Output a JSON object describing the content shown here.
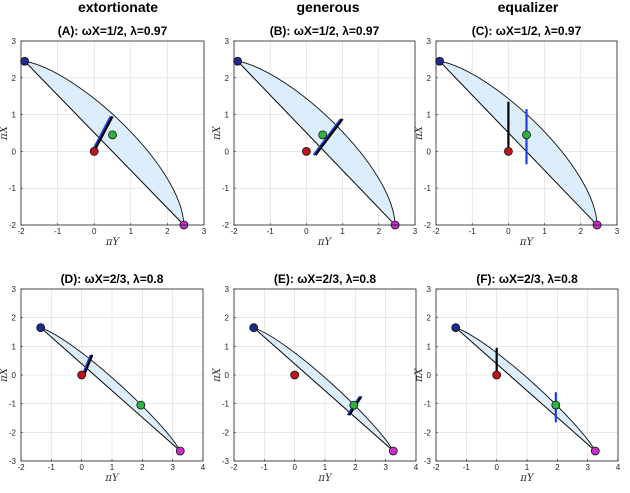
{
  "columns": [
    "extortionate",
    "generous",
    "equalizer"
  ],
  "chart_data": [
    {
      "type": "scatter",
      "panel": "A",
      "title": "(A): ωX=1/2, λ=0.97",
      "xlabel": "πY",
      "ylabel": "πX",
      "xlim": [
        -2,
        3
      ],
      "ylim": [
        -2,
        3
      ],
      "xticks": [
        "-2",
        "-1",
        "0",
        "1",
        "2",
        "3"
      ],
      "yticks": [
        "-2",
        "-1",
        "0",
        "1",
        "2",
        "3"
      ],
      "grid": true,
      "region_vertices": {
        "top_left": [
          -1.9,
          2.45
        ],
        "bottom_right": [
          2.45,
          -2
        ]
      },
      "points": [
        {
          "name": "blue",
          "x": -1.9,
          "y": 2.45
        },
        {
          "name": "red",
          "x": 0,
          "y": 0
        },
        {
          "name": "green",
          "x": 0.5,
          "y": 0.45
        },
        {
          "name": "magenta",
          "x": 2.45,
          "y": -2
        }
      ],
      "segments": [
        {
          "color": "blue",
          "x1": 0.0,
          "y1": 0.1,
          "x2": 0.45,
          "y2": 0.95
        },
        {
          "color": "black",
          "x1": 0.05,
          "y1": 0.1,
          "x2": 0.5,
          "y2": 0.95
        }
      ]
    },
    {
      "type": "scatter",
      "panel": "B",
      "title": "(B): ωX=1/2, λ=0.97",
      "xlabel": "πY",
      "ylabel": "πX",
      "xlim": [
        -2,
        3
      ],
      "ylim": [
        -2,
        3
      ],
      "xticks": [
        "-2",
        "-1",
        "0",
        "1",
        "2",
        "3"
      ],
      "yticks": [
        "-2",
        "-1",
        "0",
        "1",
        "2",
        "3"
      ],
      "grid": true,
      "region_vertices": {
        "top_left": [
          -1.9,
          2.45
        ],
        "bottom_right": [
          2.45,
          -2
        ]
      },
      "points": [
        {
          "name": "blue",
          "x": -1.9,
          "y": 2.45
        },
        {
          "name": "red",
          "x": 0,
          "y": 0
        },
        {
          "name": "green",
          "x": 0.45,
          "y": 0.45
        },
        {
          "name": "magenta",
          "x": 2.45,
          "y": -2
        }
      ],
      "segments": [
        {
          "color": "blue",
          "x1": 0.2,
          "y1": -0.1,
          "x2": 0.95,
          "y2": 0.88
        },
        {
          "color": "black",
          "x1": 0.25,
          "y1": -0.1,
          "x2": 1.0,
          "y2": 0.88
        }
      ]
    },
    {
      "type": "scatter",
      "panel": "C",
      "title": "(C): ωX=1/2, λ=0.97",
      "xlabel": "πY",
      "ylabel": "πX",
      "xlim": [
        -2,
        3
      ],
      "ylim": [
        -2,
        3
      ],
      "xticks": [
        "-2",
        "-1",
        "0",
        "1",
        "2",
        "3"
      ],
      "yticks": [
        "-2",
        "-1",
        "0",
        "1",
        "2",
        "3"
      ],
      "grid": true,
      "region_vertices": {
        "top_left": [
          -1.9,
          2.45
        ],
        "bottom_right": [
          2.45,
          -2
        ]
      },
      "points": [
        {
          "name": "blue",
          "x": -1.9,
          "y": 2.45
        },
        {
          "name": "red",
          "x": 0,
          "y": 0
        },
        {
          "name": "green",
          "x": 0.5,
          "y": 0.45
        },
        {
          "name": "magenta",
          "x": 2.45,
          "y": -2
        }
      ],
      "segments": [
        {
          "color": "black",
          "x1": 0,
          "y1": 0.05,
          "x2": 0,
          "y2": 1.35
        },
        {
          "color": "blue",
          "x1": 0.5,
          "y1": -0.35,
          "x2": 0.5,
          "y2": 1.15
        }
      ]
    },
    {
      "type": "scatter",
      "panel": "D",
      "title": "(D): ωX=2/3, λ=0.8",
      "xlabel": "πY",
      "ylabel": "πX",
      "xlim": [
        -2,
        4
      ],
      "ylim": [
        -3,
        3
      ],
      "xticks": [
        "-2",
        "-1",
        "0",
        "1",
        "2",
        "3",
        "4"
      ],
      "yticks": [
        "-3",
        "-2",
        "-1",
        "0",
        "1",
        "2",
        "3"
      ],
      "grid": true,
      "region_vertices": {
        "top_left": [
          -1.35,
          1.65
        ],
        "bottom_right": [
          3.25,
          -2.65
        ]
      },
      "points": [
        {
          "name": "blue",
          "x": -1.35,
          "y": 1.65
        },
        {
          "name": "red",
          "x": 0,
          "y": 0
        },
        {
          "name": "green",
          "x": 1.95,
          "y": -1.05
        },
        {
          "name": "magenta",
          "x": 3.25,
          "y": -2.65
        }
      ],
      "segments": [
        {
          "color": "blue",
          "x1": 0.05,
          "y1": 0.05,
          "x2": 0.3,
          "y2": 0.7
        },
        {
          "color": "black",
          "x1": 0.1,
          "y1": 0.05,
          "x2": 0.35,
          "y2": 0.7
        }
      ]
    },
    {
      "type": "scatter",
      "panel": "E",
      "title": "(E): ωX=2/3, λ=0.8",
      "xlabel": "πY",
      "ylabel": "πX",
      "xlim": [
        -2,
        4
      ],
      "ylim": [
        -3,
        3
      ],
      "xticks": [
        "-2",
        "-1",
        "0",
        "1",
        "2",
        "3",
        "4"
      ],
      "yticks": [
        "-3",
        "-2",
        "-1",
        "0",
        "1",
        "2",
        "3"
      ],
      "grid": true,
      "region_vertices": {
        "top_left": [
          -1.35,
          1.65
        ],
        "bottom_right": [
          3.25,
          -2.65
        ]
      },
      "points": [
        {
          "name": "blue",
          "x": -1.35,
          "y": 1.65
        },
        {
          "name": "red",
          "x": 0,
          "y": 0
        },
        {
          "name": "green",
          "x": 1.95,
          "y": -1.05
        },
        {
          "name": "magenta",
          "x": 3.25,
          "y": -2.65
        }
      ],
      "segments": [
        {
          "color": "blue",
          "x1": 1.75,
          "y1": -1.4,
          "x2": 2.15,
          "y2": -0.75
        },
        {
          "color": "black",
          "x1": 1.8,
          "y1": -1.4,
          "x2": 2.2,
          "y2": -0.75
        }
      ]
    },
    {
      "type": "scatter",
      "panel": "F",
      "title": "(F): ωX=2/3, λ=0.8",
      "xlabel": "πY",
      "ylabel": "πX",
      "xlim": [
        -2,
        4
      ],
      "ylim": [
        -3,
        3
      ],
      "xticks": [
        "-2",
        "-1",
        "0",
        "1",
        "2",
        "3",
        "4"
      ],
      "yticks": [
        "-3",
        "-2",
        "-1",
        "0",
        "1",
        "2",
        "3"
      ],
      "grid": true,
      "region_vertices": {
        "top_left": [
          -1.35,
          1.65
        ],
        "bottom_right": [
          3.25,
          -2.65
        ]
      },
      "points": [
        {
          "name": "blue",
          "x": -1.35,
          "y": 1.65
        },
        {
          "name": "red",
          "x": 0,
          "y": 0
        },
        {
          "name": "green",
          "x": 1.95,
          "y": -1.05
        },
        {
          "name": "magenta",
          "x": 3.25,
          "y": -2.65
        }
      ],
      "segments": [
        {
          "color": "black",
          "x1": 0,
          "y1": 0.05,
          "x2": 0,
          "y2": 0.95
        },
        {
          "color": "blue",
          "x1": 1.95,
          "y1": -1.65,
          "x2": 1.95,
          "y2": -0.6
        }
      ]
    }
  ],
  "colors": {
    "region_fill": "#dceefc",
    "region_stroke": "#111111",
    "grid": "#d9d9d9",
    "blue_point": "#1f2a8c",
    "red_point": "#c0161b",
    "green_point": "#2fb33a",
    "magenta_point": "#c92ec9",
    "blue_segment": "#1f3fe0",
    "black_segment": "#000000"
  }
}
